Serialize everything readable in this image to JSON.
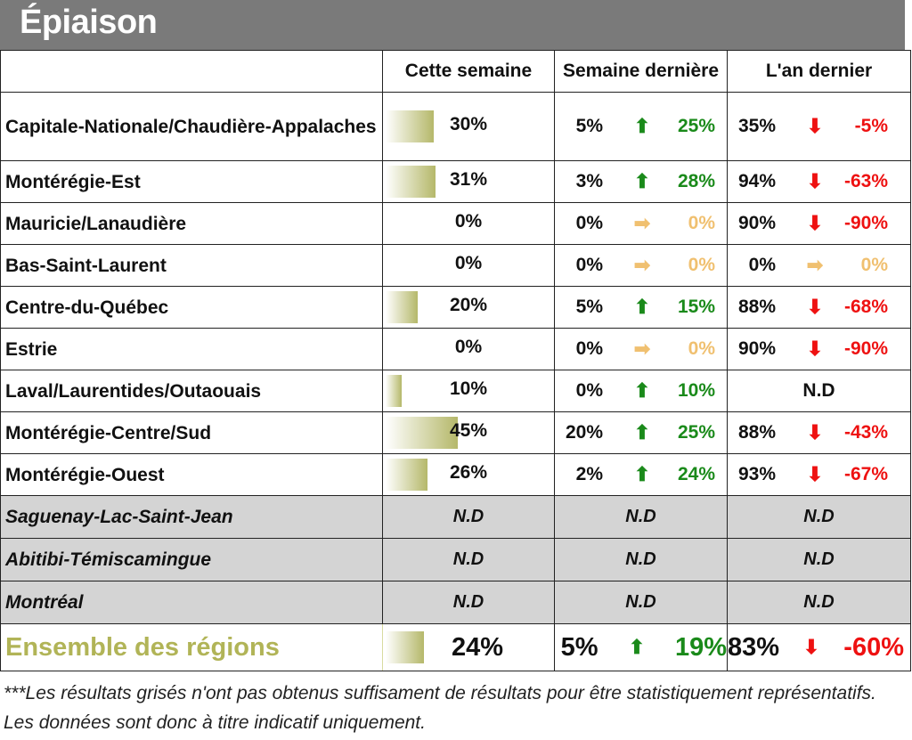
{
  "title": "Épiaison",
  "headers": [
    "",
    "Cette semaine",
    "Semaine dernière",
    "L'an dernier"
  ],
  "colors": {
    "up": "#1a8a1a",
    "down": "#ee1111",
    "flat": "#f0c070",
    "bar": "#b5b86a",
    "gray_row": "#d4d4d4",
    "title_bg": "#7a7a7a"
  },
  "rows": [
    {
      "region": "Capitale-Nationale/Chaudière-Appalaches",
      "this_week": "30%",
      "this_week_pct": 30,
      "last_week": "5%",
      "lw_dir": "up",
      "lw_diff": "25%",
      "last_year": "35%",
      "ly_dir": "down",
      "ly_diff": "-5%"
    },
    {
      "region": "Montérégie-Est",
      "this_week": "31%",
      "this_week_pct": 31,
      "last_week": "3%",
      "lw_dir": "up",
      "lw_diff": "28%",
      "last_year": "94%",
      "ly_dir": "down",
      "ly_diff": "-63%"
    },
    {
      "region": "Mauricie/Lanaudière",
      "this_week": "0%",
      "this_week_pct": 0,
      "last_week": "0%",
      "lw_dir": "flat",
      "lw_diff": "0%",
      "last_year": "90%",
      "ly_dir": "down",
      "ly_diff": "-90%"
    },
    {
      "region": "Bas-Saint-Laurent",
      "this_week": "0%",
      "this_week_pct": 0,
      "last_week": "0%",
      "lw_dir": "flat",
      "lw_diff": "0%",
      "last_year": "0%",
      "ly_dir": "flat",
      "ly_diff": "0%"
    },
    {
      "region": "Centre-du-Québec",
      "this_week": "20%",
      "this_week_pct": 20,
      "last_week": "5%",
      "lw_dir": "up",
      "lw_diff": "15%",
      "last_year": "88%",
      "ly_dir": "down",
      "ly_diff": "-68%"
    },
    {
      "region": "Estrie",
      "this_week": "0%",
      "this_week_pct": 0,
      "last_week": "0%",
      "lw_dir": "flat",
      "lw_diff": "0%",
      "last_year": "90%",
      "ly_dir": "down",
      "ly_diff": "-90%"
    },
    {
      "region": "Laval/Laurentides/Outaouais",
      "this_week": "10%",
      "this_week_pct": 10,
      "last_week": "0%",
      "lw_dir": "up",
      "lw_diff": "10%",
      "last_year": "N.D",
      "ly_dir": "",
      "ly_diff": ""
    },
    {
      "region": "Montérégie-Centre/Sud",
      "this_week": "45%",
      "this_week_pct": 45,
      "last_week": "20%",
      "lw_dir": "up",
      "lw_diff": "25%",
      "last_year": "88%",
      "ly_dir": "down",
      "ly_diff": "-43%"
    },
    {
      "region": "Montérégie-Ouest",
      "this_week": "26%",
      "this_week_pct": 26,
      "last_week": "2%",
      "lw_dir": "up",
      "lw_diff": "24%",
      "last_year": "93%",
      "ly_dir": "down",
      "ly_diff": "-67%"
    }
  ],
  "gray_rows": [
    {
      "region": "Saguenay-Lac-Saint-Jean",
      "this_week": "N.D",
      "last_week": "N.D",
      "last_year": "N.D"
    },
    {
      "region": "Abitibi-Témiscamingue",
      "this_week": "N.D",
      "last_week": "N.D",
      "last_year": "N.D"
    },
    {
      "region": "Montréal",
      "this_week": "N.D",
      "last_week": "N.D",
      "last_year": "N.D"
    }
  ],
  "total": {
    "region": "Ensemble des régions",
    "this_week": "24%",
    "this_week_pct": 24,
    "last_week": "5%",
    "lw_dir": "up",
    "lw_diff": "19%",
    "last_year": "83%",
    "ly_dir": "down",
    "ly_diff": "-60%"
  },
  "footnote": "***Les résultats grisés n'ont pas obtenus suffisament de résultats pour être statistiquement représentatifs. Les données sont donc à titre indicatif uniquement."
}
